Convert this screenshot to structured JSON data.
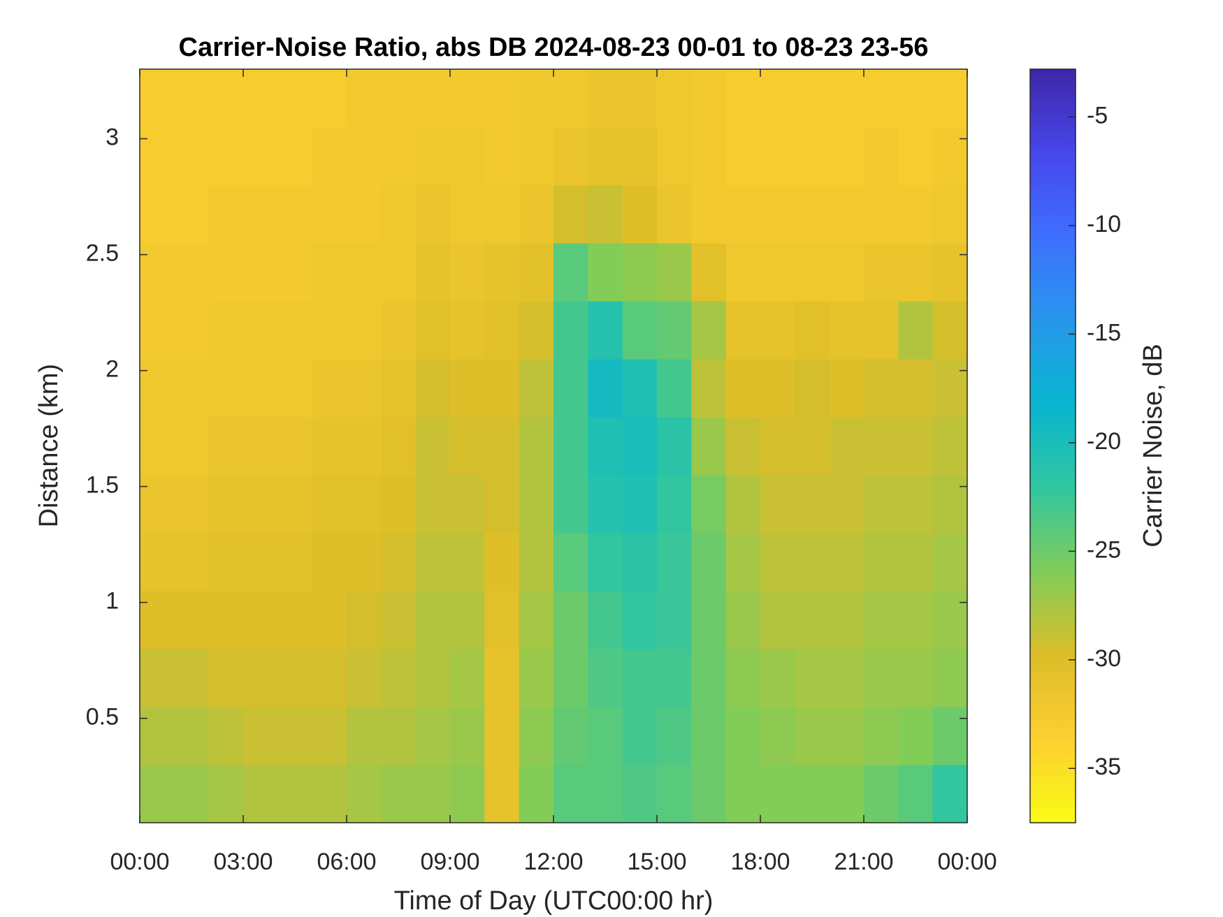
{
  "chart_data": {
    "type": "heatmap",
    "title": "Carrier-Noise Ratio, abs DB 2024-08-23 00-01 to 08-23 23-56",
    "x_label": "Time of Day (UTC00:00 hr)",
    "y_label": "Distance (km)",
    "colorbar_label": "Carrier Noise, dB",
    "xlim": [
      0,
      24
    ],
    "xticks": [
      {
        "value": 0,
        "label": "00:00"
      },
      {
        "value": 3,
        "label": "03:00"
      },
      {
        "value": 6,
        "label": "06:00"
      },
      {
        "value": 9,
        "label": "09:00"
      },
      {
        "value": 12,
        "label": "12:00"
      },
      {
        "value": 15,
        "label": "15:00"
      },
      {
        "value": 18,
        "label": "18:00"
      },
      {
        "value": 21,
        "label": "21:00"
      },
      {
        "value": 24,
        "label": "00:00"
      }
    ],
    "ylim": [
      0.05,
      3.3
    ],
    "yticks": [
      0.5,
      1,
      1.5,
      2,
      2.5,
      3
    ],
    "clim": [
      -37.5,
      -2.8
    ],
    "cticks": [
      -35,
      -30,
      -25,
      -20,
      -15,
      -10,
      -5
    ],
    "colormap": "parula",
    "x": [
      0.5,
      1.5,
      2.5,
      3.5,
      4.5,
      5.5,
      6.5,
      7.5,
      8.5,
      9.5,
      10.5,
      11.5,
      12.5,
      13.5,
      14.5,
      15.5,
      16.5,
      17.5,
      18.5,
      19.5,
      20.5,
      21.5,
      22.5,
      23.5
    ],
    "y": [
      0.175,
      0.425,
      0.675,
      0.925,
      1.175,
      1.425,
      1.675,
      1.925,
      2.175,
      2.425,
      2.675,
      2.925,
      3.175
    ],
    "z": [
      [
        -27,
        -27,
        -27.5,
        -28,
        -28,
        -28,
        -27.5,
        -27,
        -27,
        -26.5,
        -31,
        -26,
        -24,
        -24,
        -23.5,
        -24,
        -25,
        -26,
        -26,
        -26,
        -26,
        -25,
        -24,
        -22
      ],
      [
        -28,
        -28,
        -28.5,
        -29,
        -29,
        -29,
        -28,
        -28,
        -27.5,
        -27,
        -31,
        -26.5,
        -24.5,
        -24,
        -23,
        -23.5,
        -25,
        -26,
        -26.5,
        -27,
        -27,
        -26.5,
        -26,
        -25
      ],
      [
        -29,
        -29,
        -29.5,
        -29.5,
        -29.5,
        -29.5,
        -29,
        -28.5,
        -28,
        -27.5,
        -31,
        -27,
        -25,
        -23.5,
        -23,
        -23,
        -25,
        -26.5,
        -27,
        -27.5,
        -27.5,
        -27,
        -27,
        -26.5
      ],
      [
        -30,
        -30,
        -30,
        -30,
        -30,
        -30,
        -29.5,
        -29,
        -28,
        -28,
        -30.5,
        -27.5,
        -25,
        -23,
        -22,
        -22.5,
        -25,
        -27,
        -28,
        -28,
        -28,
        -27.5,
        -27.5,
        -27
      ],
      [
        -31,
        -31,
        -30.5,
        -30.5,
        -30.5,
        -30,
        -30,
        -29.5,
        -28.5,
        -28.5,
        -30,
        -28,
        -24,
        -22,
        -21.5,
        -22.5,
        -25,
        -27.5,
        -28.5,
        -28.5,
        -28.5,
        -28,
        -28,
        -27.5
      ],
      [
        -31.5,
        -31.5,
        -31,
        -31,
        -31,
        -30.5,
        -30.5,
        -30,
        -29,
        -29,
        -29.5,
        -28,
        -23,
        -21,
        -20.5,
        -22,
        -25.5,
        -28,
        -29,
        -29,
        -29,
        -28.5,
        -28.5,
        -28
      ],
      [
        -32,
        -32,
        -31.5,
        -31.5,
        -31.5,
        -31,
        -31,
        -30.5,
        -29,
        -29.5,
        -29.5,
        -28,
        -23,
        -20.5,
        -20,
        -21.5,
        -27,
        -29,
        -29.5,
        -29.5,
        -29,
        -29,
        -29,
        -28.5
      ],
      [
        -32,
        -32,
        -32,
        -32,
        -32,
        -31.5,
        -31.5,
        -31,
        -29.5,
        -30,
        -30,
        -28.5,
        -23,
        -19.5,
        -20.5,
        -23,
        -28.5,
        -30,
        -30,
        -29.5,
        -30,
        -29.5,
        -29.5,
        -29
      ],
      [
        -32.5,
        -32.5,
        -32,
        -32,
        -32,
        -32,
        -32,
        -31.5,
        -30.5,
        -31,
        -30.5,
        -29.5,
        -23,
        -21,
        -24,
        -24.5,
        -27.5,
        -31,
        -31,
        -30.5,
        -31,
        -31,
        -28,
        -29.5
      ],
      [
        -32.5,
        -32.5,
        -32.5,
        -32.5,
        -32.5,
        -32,
        -32,
        -32,
        -31,
        -31.5,
        -31,
        -30.5,
        -24,
        -26,
        -26.5,
        -27,
        -30.5,
        -32,
        -32,
        -32,
        -32,
        -31.5,
        -31.5,
        -31
      ],
      [
        -33,
        -33,
        -32.5,
        -32.5,
        -32.5,
        -32.5,
        -32.5,
        -32,
        -31.5,
        -32,
        -32,
        -31.5,
        -29.5,
        -29,
        -30,
        -31.5,
        -32.5,
        -32.5,
        -32.5,
        -32.5,
        -32.5,
        -32.5,
        -32.5,
        -32
      ],
      [
        -33,
        -33,
        -33,
        -33,
        -33,
        -32.5,
        -32.5,
        -32.5,
        -32,
        -32,
        -32.5,
        -32,
        -31.5,
        -31,
        -31,
        -32,
        -32.5,
        -33,
        -33,
        -33,
        -33,
        -32.5,
        -33,
        -32.5
      ],
      [
        -33,
        -33,
        -33,
        -33,
        -33,
        -33,
        -32.5,
        -32.5,
        -32.5,
        -32.5,
        -32.5,
        -32,
        -32,
        -31.5,
        -31.5,
        -32,
        -32.5,
        -33,
        -33,
        -33,
        -33,
        -33,
        -33,
        -33
      ]
    ]
  }
}
